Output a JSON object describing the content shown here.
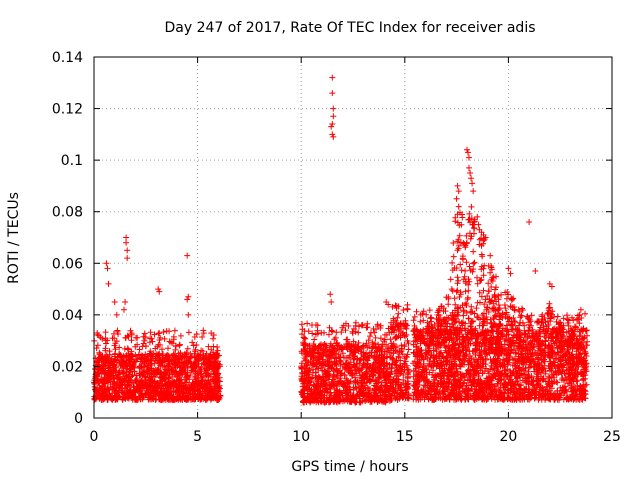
{
  "chart_data": {
    "type": "scatter",
    "title": "Day 247 of 2017, Rate Of TEC Index for receiver adis",
    "xlabel": "GPS time / hours",
    "ylabel": "ROTI / TECUs",
    "xlim": [
      0,
      25
    ],
    "ylim": [
      0,
      0.14
    ],
    "x_ticks": [
      0,
      5,
      10,
      15,
      20,
      25
    ],
    "x_tick_labels": [
      "0",
      "5",
      "10",
      "15",
      "20",
      "25"
    ],
    "y_ticks": [
      0,
      0.02,
      0.04,
      0.06,
      0.08,
      0.1,
      0.12,
      0.14
    ],
    "y_tick_labels": [
      "0",
      "0.02",
      "0.04",
      "0.06",
      "0.08",
      "0.1",
      "0.12",
      "0.14"
    ],
    "grid": true,
    "marker": "+",
    "color": "#ff0000",
    "series": [
      {
        "name": "ROTI",
        "segments": [
          {
            "x_start": 0.0,
            "x_end": 6.1,
            "y_base": 0.007,
            "y_core_max": 0.022
          },
          {
            "x_start": 10.0,
            "x_end": 14.3,
            "y_base": 0.006,
            "y_core_max": 0.025
          },
          {
            "x_start": 14.3,
            "x_end": 15.2,
            "y_base": 0.007,
            "y_core_max": 0.032
          },
          {
            "x_start": 15.4,
            "x_end": 23.8,
            "y_base": 0.007,
            "y_core_max": 0.03
          }
        ],
        "peaks": [
          {
            "x": 0.6,
            "y": 0.06
          },
          {
            "x": 0.65,
            "y": 0.058
          },
          {
            "x": 0.7,
            "y": 0.052
          },
          {
            "x": 1.0,
            "y": 0.045
          },
          {
            "x": 1.1,
            "y": 0.04
          },
          {
            "x": 1.55,
            "y": 0.07
          },
          {
            "x": 1.55,
            "y": 0.068
          },
          {
            "x": 1.6,
            "y": 0.065
          },
          {
            "x": 1.6,
            "y": 0.062
          },
          {
            "x": 1.5,
            "y": 0.045
          },
          {
            "x": 1.45,
            "y": 0.042
          },
          {
            "x": 3.1,
            "y": 0.05
          },
          {
            "x": 3.15,
            "y": 0.049
          },
          {
            "x": 4.5,
            "y": 0.063
          },
          {
            "x": 4.55,
            "y": 0.047
          },
          {
            "x": 4.5,
            "y": 0.046
          },
          {
            "x": 4.55,
            "y": 0.04
          },
          {
            "x": 11.5,
            "y": 0.132
          },
          {
            "x": 11.5,
            "y": 0.126
          },
          {
            "x": 11.55,
            "y": 0.12
          },
          {
            "x": 11.55,
            "y": 0.117
          },
          {
            "x": 11.5,
            "y": 0.114
          },
          {
            "x": 11.45,
            "y": 0.113
          },
          {
            "x": 11.5,
            "y": 0.11
          },
          {
            "x": 11.55,
            "y": 0.109
          },
          {
            "x": 11.4,
            "y": 0.048
          },
          {
            "x": 11.45,
            "y": 0.045
          },
          {
            "x": 14.1,
            "y": 0.045
          },
          {
            "x": 14.2,
            "y": 0.044
          },
          {
            "x": 18.0,
            "y": 0.104
          },
          {
            "x": 18.05,
            "y": 0.103
          },
          {
            "x": 18.1,
            "y": 0.101
          },
          {
            "x": 18.1,
            "y": 0.097
          },
          {
            "x": 18.15,
            "y": 0.095
          },
          {
            "x": 18.2,
            "y": 0.093
          },
          {
            "x": 18.25,
            "y": 0.091
          },
          {
            "x": 18.3,
            "y": 0.088
          },
          {
            "x": 17.55,
            "y": 0.09
          },
          {
            "x": 17.6,
            "y": 0.088
          },
          {
            "x": 17.5,
            "y": 0.085
          },
          {
            "x": 17.6,
            "y": 0.082
          },
          {
            "x": 17.55,
            "y": 0.079
          },
          {
            "x": 18.5,
            "y": 0.078
          },
          {
            "x": 18.55,
            "y": 0.075
          },
          {
            "x": 18.6,
            "y": 0.073
          },
          {
            "x": 18.7,
            "y": 0.072
          },
          {
            "x": 18.8,
            "y": 0.071
          },
          {
            "x": 18.9,
            "y": 0.07
          },
          {
            "x": 20.0,
            "y": 0.058
          },
          {
            "x": 20.1,
            "y": 0.056
          },
          {
            "x": 21.0,
            "y": 0.076
          },
          {
            "x": 21.3,
            "y": 0.057
          },
          {
            "x": 22.0,
            "y": 0.052
          },
          {
            "x": 22.1,
            "y": 0.051
          },
          {
            "x": 23.5,
            "y": 0.042
          }
        ],
        "tall_columns": [
          {
            "x": 17.3,
            "y_max": 0.07
          },
          {
            "x": 17.5,
            "y_max": 0.078
          },
          {
            "x": 17.7,
            "y_max": 0.082
          },
          {
            "x": 17.9,
            "y_max": 0.072
          },
          {
            "x": 18.1,
            "y_max": 0.086
          },
          {
            "x": 18.35,
            "y_max": 0.08
          },
          {
            "x": 18.6,
            "y_max": 0.07
          },
          {
            "x": 18.85,
            "y_max": 0.072
          },
          {
            "x": 19.1,
            "y_max": 0.064
          },
          {
            "x": 19.3,
            "y_max": 0.056
          },
          {
            "x": 19.6,
            "y_max": 0.05
          },
          {
            "x": 19.9,
            "y_max": 0.055
          },
          {
            "x": 20.2,
            "y_max": 0.048
          },
          {
            "x": 20.6,
            "y_max": 0.043
          },
          {
            "x": 21.0,
            "y_max": 0.04
          },
          {
            "x": 21.5,
            "y_max": 0.038
          },
          {
            "x": 22.0,
            "y_max": 0.045
          },
          {
            "x": 22.5,
            "y_max": 0.038
          },
          {
            "x": 23.0,
            "y_max": 0.035
          },
          {
            "x": 23.4,
            "y_max": 0.04
          },
          {
            "x": 16.2,
            "y_max": 0.04
          },
          {
            "x": 16.7,
            "y_max": 0.045
          },
          {
            "x": 17.0,
            "y_max": 0.048
          }
        ]
      }
    ]
  }
}
